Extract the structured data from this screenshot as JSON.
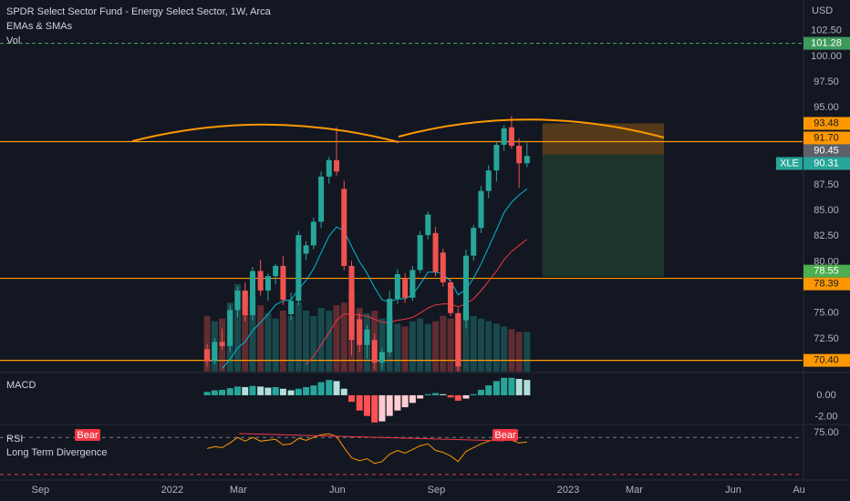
{
  "chart_data": {
    "type": "candlestick",
    "title": "SPDR Select Sector Fund - Energy Select Sector, 1W, Arca",
    "indicators": [
      "EMAs & SMAs",
      "Vol"
    ],
    "currency": "USD",
    "symbol": "XLE",
    "x": [
      2022.088,
      2022.107,
      2022.126,
      2022.146,
      2022.165,
      2022.184,
      2022.203,
      2022.223,
      2022.242,
      2022.261,
      2022.28,
      2022.3,
      2022.319,
      2022.338,
      2022.357,
      2022.376,
      2022.396,
      2022.415,
      2022.434,
      2022.453,
      2022.473,
      2022.492,
      2022.511,
      2022.53,
      2022.549,
      2022.569,
      2022.588,
      2022.607,
      2022.626,
      2022.646,
      2022.665,
      2022.684,
      2022.703,
      2022.722,
      2022.742,
      2022.761,
      2022.78,
      2022.799,
      2022.819,
      2022.838,
      2022.857,
      2022.876,
      2022.896
    ],
    "open": [
      71.5,
      70.3,
      72.2,
      71.8,
      75.3,
      77.2,
      74.8,
      79.1,
      77.2,
      78.6,
      79.6,
      74.9,
      76.2,
      80.8,
      81.6,
      83.9,
      88.3,
      89.9,
      87.1,
      79.6,
      74.4,
      71.9,
      72.4,
      70.2,
      71.2,
      76.4,
      78.4,
      76.5,
      79.2,
      82.6,
      82.8,
      80.9,
      78.0,
      75.0,
      74.3,
      80.6,
      83.3,
      86.9,
      88.9,
      91.4,
      93.1,
      91.3,
      89.6
    ],
    "high": [
      72.0,
      72.6,
      73.5,
      75.8,
      77.6,
      78.0,
      79.5,
      80.2,
      78.9,
      79.8,
      80.6,
      77.0,
      83.0,
      82.0,
      84.3,
      88.8,
      90.2,
      93.1,
      87.9,
      80.1,
      75.0,
      73.8,
      73.0,
      71.6,
      77.2,
      79.3,
      78.9,
      79.6,
      83.0,
      84.9,
      83.4,
      81.3,
      78.3,
      75.5,
      81.2,
      83.6,
      87.4,
      89.4,
      91.7,
      93.3,
      94.2,
      92.0,
      91.6
    ],
    "low": [
      69.8,
      70.0,
      71.4,
      71.2,
      74.6,
      74.2,
      74.3,
      76.7,
      76.2,
      77.8,
      75.8,
      74.3,
      75.8,
      80.2,
      81.2,
      83.3,
      87.6,
      88.4,
      79.2,
      70.9,
      71.2,
      70.6,
      69.5,
      69.5,
      70.8,
      75.9,
      76.0,
      76.2,
      78.9,
      82.2,
      78.6,
      77.6,
      74.7,
      69.3,
      73.5,
      80.1,
      82.8,
      86.2,
      87.8,
      90.8,
      91.0,
      87.2,
      89.2
    ],
    "close": [
      70.3,
      72.2,
      71.8,
      75.3,
      77.2,
      74.8,
      79.1,
      77.2,
      78.6,
      79.6,
      76.3,
      76.2,
      82.6,
      81.6,
      83.9,
      88.3,
      89.9,
      88.8,
      79.6,
      72.4,
      71.9,
      73.4,
      70.2,
      71.2,
      76.4,
      78.8,
      76.5,
      79.2,
      82.6,
      84.6,
      79.0,
      78.0,
      75.0,
      69.8,
      80.6,
      83.3,
      86.9,
      88.9,
      91.4,
      93.0,
      91.3,
      89.6,
      90.31
    ],
    "up_color": "#26a69a",
    "down_color": "#ef5350",
    "volume": [
      210,
      190,
      200,
      260,
      330,
      300,
      280,
      250,
      220,
      200,
      230,
      210,
      260,
      230,
      210,
      240,
      230,
      250,
      260,
      300,
      240,
      220,
      230,
      200,
      210,
      180,
      170,
      190,
      200,
      180,
      190,
      210,
      200,
      220,
      230,
      210,
      200,
      190,
      180,
      170,
      160,
      150,
      150
    ],
    "vlim": [
      0,
      1400
    ],
    "ema": [
      {
        "color": "#00bcd4",
        "values": [
          null,
          null,
          69.6,
          70.5,
          71.6,
          72.2,
          73.3,
          74.1,
          74.9,
          75.8,
          76.2,
          76.3,
          77.3,
          78.2,
          79.3,
          80.9,
          82.5,
          83.4,
          83.0,
          81.5,
          80.0,
          78.9,
          77.5,
          76.3,
          76.1,
          76.4,
          76.4,
          76.8,
          77.8,
          79.0,
          79.0,
          78.8,
          78.1,
          76.8,
          77.3,
          78.4,
          79.8,
          81.4,
          83.1,
          84.8,
          85.8,
          86.5,
          87.1
        ]
      },
      {
        "color": "#f23645",
        "values": [
          null,
          null,
          null,
          null,
          null,
          null,
          null,
          null,
          null,
          null,
          null,
          null,
          null,
          70.0,
          70.8,
          71.9,
          73.1,
          74.3,
          74.9,
          74.9,
          74.8,
          74.7,
          74.4,
          74.1,
          74.1,
          74.3,
          74.4,
          74.6,
          75.0,
          75.5,
          75.8,
          75.9,
          75.9,
          75.6,
          75.9,
          76.4,
          77.2,
          78.1,
          79.1,
          80.2,
          81.0,
          81.6,
          82.2
        ]
      }
    ],
    "xlim": [
      2021.565,
      2023.592
    ],
    "ylim": [
      69.3,
      105.5
    ],
    "yticks": [
      {
        "value": 102.5,
        "label": "102.50"
      },
      {
        "value": 100,
        "label": "100.00"
      },
      {
        "value": 97.5,
        "label": "97.50"
      },
      {
        "value": 95,
        "label": "95.00"
      },
      {
        "value": 87.5,
        "label": "87.50"
      },
      {
        "value": 85,
        "label": "85.00"
      },
      {
        "value": 82.5,
        "label": "82.50"
      },
      {
        "value": 80,
        "label": "80.00"
      },
      {
        "value": 75,
        "label": "75.00"
      },
      {
        "value": 72.5,
        "label": "72.50"
      }
    ],
    "xticks": [
      {
        "value": 2021.667,
        "label": "Sep"
      },
      {
        "value": 2022,
        "label": "2022"
      },
      {
        "value": 2022.167,
        "label": "Mar"
      },
      {
        "value": 2022.417,
        "label": "Jun"
      },
      {
        "value": 2022.667,
        "label": "Sep"
      },
      {
        "value": 2023,
        "label": "2023"
      },
      {
        "value": 2023.167,
        "label": "Mar"
      },
      {
        "value": 2023.417,
        "label": "Jun"
      },
      {
        "value": 2023.583,
        "label": "Au"
      }
    ],
    "levels": [
      {
        "value": 101.28,
        "color": "#3d9a5c",
        "line": true,
        "dashed": true
      },
      {
        "value": 93.48,
        "color": "#ff9800",
        "line": false
      },
      {
        "value": 91.7,
        "label": "91.70",
        "color": "#ff9800",
        "line": true
      },
      {
        "value": 90.45,
        "color": "#5d606b",
        "line": false
      },
      {
        "value": 90.31,
        "color": "#26a69a",
        "line": false,
        "tag": "XLE"
      },
      {
        "value": 78.55,
        "color": "#4caf50",
        "line": false
      },
      {
        "value": 78.39,
        "color": "#ff9800",
        "line": true
      },
      {
        "value": 70.4,
        "label": "70.40",
        "color": "#ff9800",
        "line": true
      }
    ],
    "position": {
      "x": [
        2022.935,
        2023.242
      ],
      "stop": 93.48,
      "entry": 90.45,
      "target": 78.55
    },
    "macd": {
      "label": "MACD",
      "values": [
        0.3,
        0.45,
        0.5,
        0.65,
        0.8,
        0.75,
        0.85,
        0.8,
        0.7,
        0.75,
        0.6,
        0.45,
        0.6,
        0.75,
        0.9,
        1.2,
        1.4,
        1.3,
        0.6,
        -0.6,
        -1.4,
        -1.9,
        -2.5,
        -2.4,
        -1.9,
        -1.4,
        -1.1,
        -0.7,
        -0.3,
        0.1,
        0.2,
        0.1,
        -0.2,
        -0.5,
        -0.3,
        0.1,
        0.5,
        0.9,
        1.3,
        1.6,
        1.6,
        1.5,
        1.4
      ],
      "colors": [
        "#26a69a",
        "#b2dfdb",
        "#ff5252",
        "#ffcdd2"
      ],
      "ylim": [
        -2.6,
        2.0
      ],
      "yticks": [
        {
          "value": 0,
          "label": "0.00"
        },
        {
          "value": -2,
          "label": "-2.00"
        }
      ]
    },
    "rsi": {
      "label": "RSI",
      "study": "Long Term Divergence",
      "signals": [
        "Bear",
        "Bear"
      ],
      "color": "#ff9800",
      "values": [
        58,
        60,
        59,
        64,
        70,
        66,
        70,
        66,
        67,
        68,
        62,
        63,
        69,
        67,
        70,
        73,
        74,
        71,
        59,
        48,
        45,
        47,
        42,
        44,
        52,
        56,
        53,
        57,
        61,
        63,
        56,
        54,
        50,
        44,
        55,
        59,
        63,
        66,
        69,
        71,
        67,
        64,
        65
      ],
      "ylim": [
        25,
        83
      ],
      "yticks": [
        {
          "value": 75,
          "label": "75.00"
        }
      ],
      "bands": [
        {
          "value": 70,
          "color": "#787b86"
        },
        {
          "value": 30,
          "color": "#f23645"
        }
      ]
    }
  }
}
